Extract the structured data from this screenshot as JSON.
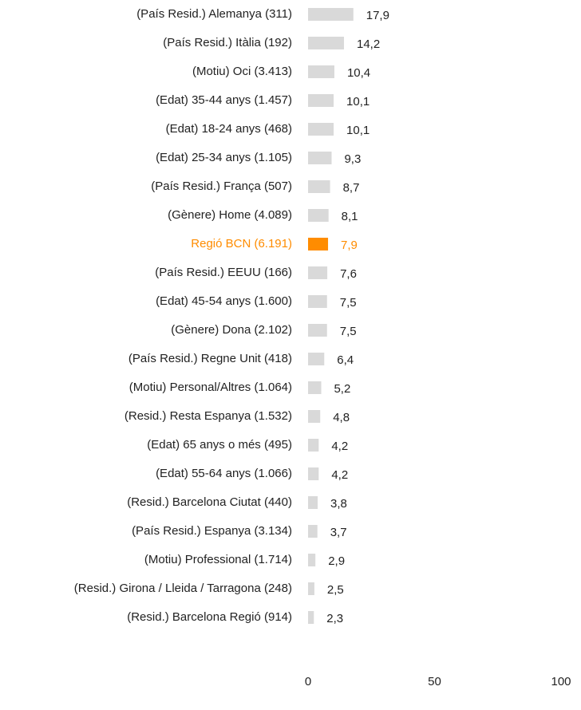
{
  "chart_data": {
    "type": "barh",
    "categories": [
      "(País Resid.) Alemanya (311)",
      "(País Resid.) Itàlia (192)",
      "(Motiu) Oci (3.413)",
      "(Edat) 35-44 anys (1.457)",
      "(Edat) 18-24 anys (468)",
      "(Edat) 25-34 anys  (1.105)",
      "(País Resid.) França (507)",
      "(Gènere) Home (4.089)",
      "Regió BCN (6.191)",
      "(País Resid.) EEUU (166)",
      "(Edat) 45-54 anys (1.600)",
      "(Gènere) Dona (2.102)",
      "(País Resid.) Regne Unit (418)",
      "(Motiu) Personal/Altres (1.064)",
      "(Resid.) Resta Espanya (1.532)",
      "(Edat) 65 anys o més (495)",
      "(Edat) 55-64 anys (1.066)",
      "(Resid.) Barcelona Ciutat (440)",
      "(País Resid.) Espanya (3.134)",
      "(Motiu) Professional (1.714)",
      "(Resid.) Girona / Lleida / Tarragona (248)",
      "(Resid.) Barcelona Regió (914)"
    ],
    "values": [
      17.9,
      14.2,
      10.4,
      10.1,
      10.1,
      9.3,
      8.7,
      8.1,
      7.9,
      7.6,
      7.5,
      7.5,
      6.4,
      5.2,
      4.8,
      4.2,
      4.2,
      3.8,
      3.7,
      2.9,
      2.5,
      2.3
    ],
    "value_labels": [
      "17,9",
      "14,2",
      "10,4",
      "10,1",
      "10,1",
      "9,3",
      "8,7",
      "8,1",
      "7,9",
      "7,6",
      "7,5",
      "7,5",
      "6,4",
      "5,2",
      "4,8",
      "4,2",
      "4,2",
      "3,8",
      "3,7",
      "2,9",
      "2,5",
      "2,3"
    ],
    "color": "#d9d9d9",
    "colors": [
      "#d9d9d9",
      "#d9d9d9",
      "#d9d9d9",
      "#d9d9d9",
      "#d9d9d9",
      "#d9d9d9",
      "#d9d9d9",
      "#d9d9d9",
      "#ff8c00",
      "#d9d9d9",
      "#d9d9d9",
      "#d9d9d9",
      "#d9d9d9",
      "#d9d9d9",
      "#d9d9d9",
      "#d9d9d9",
      "#d9d9d9",
      "#d9d9d9",
      "#d9d9d9",
      "#d9d9d9",
      "#d9d9d9",
      "#d9d9d9"
    ],
    "xlim": [
      0,
      100
    ],
    "xticks": [
      0,
      50,
      100
    ],
    "grid": false
  }
}
